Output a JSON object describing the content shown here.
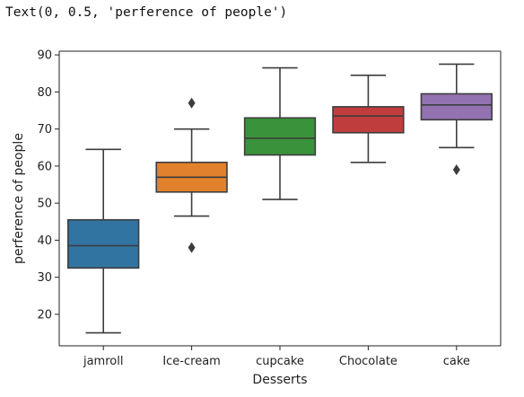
{
  "output_text": "Text(0, 0.5, 'perference of people')",
  "chart_data": {
    "type": "boxplot",
    "xlabel": "Desserts",
    "ylabel": "perference of people",
    "ylim": [
      11.5,
      91
    ],
    "yticks": [
      20,
      30,
      40,
      50,
      60,
      70,
      80,
      90
    ],
    "grid": false,
    "categories": [
      "jamroll",
      "Ice-cream",
      "cupcake",
      "Chocolate",
      "cake"
    ],
    "boxes": [
      {
        "category": "jamroll",
        "whisker_low": 15,
        "q1": 32.5,
        "median": 38.5,
        "q3": 45.5,
        "whisker_high": 64.5,
        "outliers": [],
        "color": "#3274a1"
      },
      {
        "category": "Ice-cream",
        "whisker_low": 46.5,
        "q1": 53,
        "median": 57,
        "q3": 61,
        "whisker_high": 70,
        "outliers": [
          38,
          77
        ],
        "color": "#e1812c"
      },
      {
        "category": "cupcake",
        "whisker_low": 51,
        "q1": 63,
        "median": 67.5,
        "q3": 73,
        "whisker_high": 86.5,
        "outliers": [],
        "color": "#3a923a"
      },
      {
        "category": "Chocolate",
        "whisker_low": 61,
        "q1": 69,
        "median": 73.5,
        "q3": 76,
        "whisker_high": 84.5,
        "outliers": [],
        "color": "#c03d3e"
      },
      {
        "category": "cake",
        "whisker_low": 65,
        "q1": 72.5,
        "median": 76.5,
        "q3": 79.5,
        "whisker_high": 87.5,
        "outliers": [
          59
        ],
        "color": "#9372b2"
      }
    ]
  }
}
